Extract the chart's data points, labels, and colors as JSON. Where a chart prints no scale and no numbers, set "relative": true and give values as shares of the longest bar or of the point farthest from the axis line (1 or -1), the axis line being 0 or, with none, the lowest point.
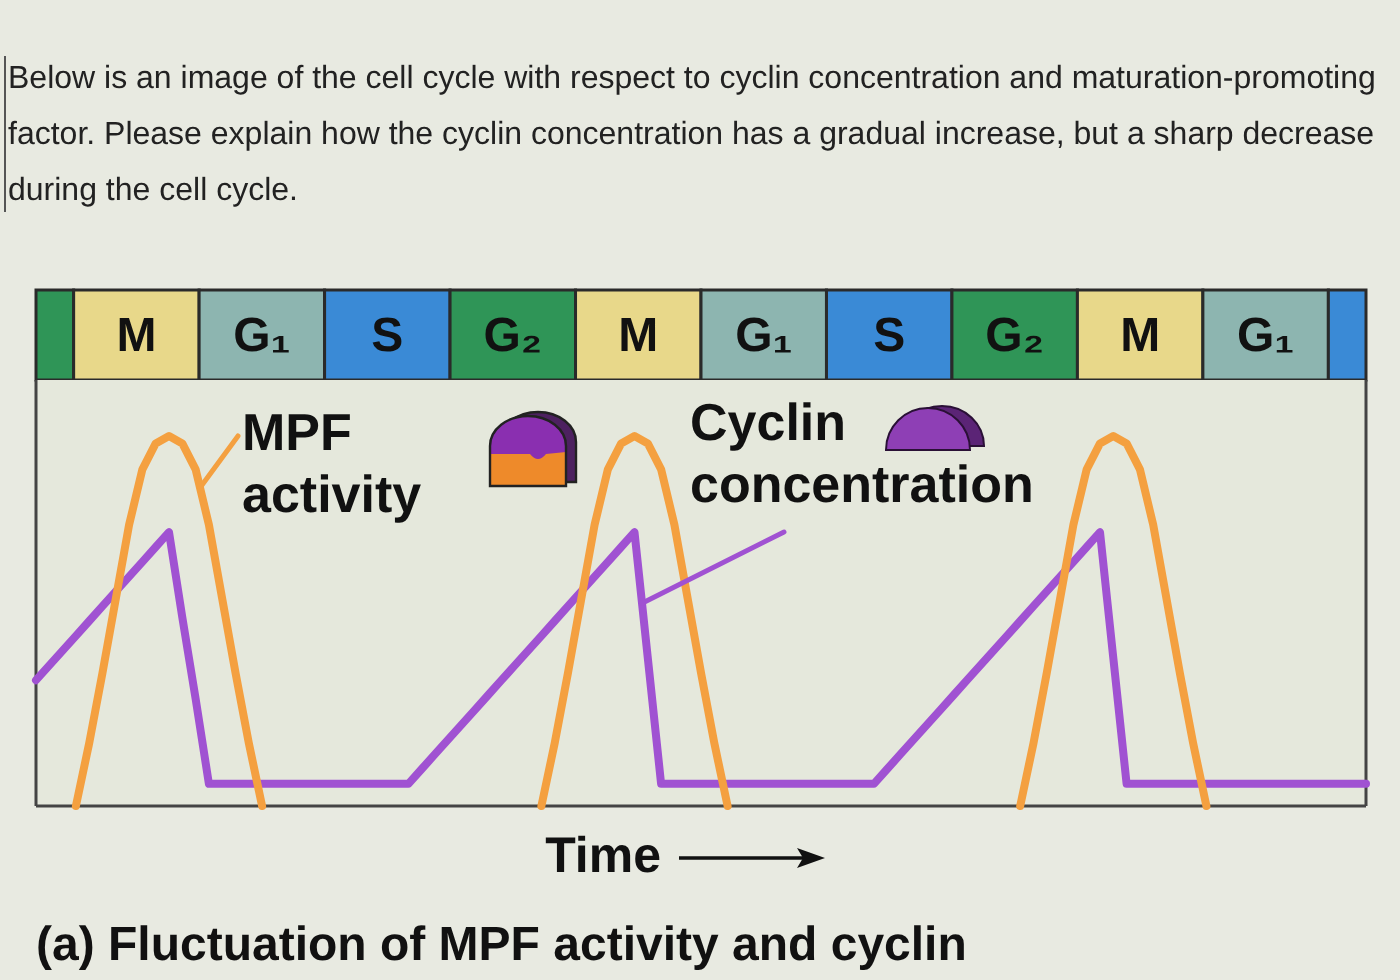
{
  "chart_data": [
    {
      "type": "other",
      "title": "Below is an image of the cell cycle with respect to cyclin concentration and maturation-promoting factor. Please explain how the cyclin concentration has a gradual increase, but a sharp decrease during the cell cycle.",
      "categories": [
        null,
        "M",
        "G₁",
        "S",
        "G₂",
        "M",
        "G₁",
        "S",
        "G₂",
        "M",
        "G₁",
        null
      ],
      "colors": [
        "#2f9557",
        "#e8d88a",
        "#8db5b0",
        "#3a8ad6",
        "#2f9557",
        "#e8d88a",
        "#8db5b0",
        "#3a8ad6",
        "#2f9557",
        "#e8d88a",
        "#8db5b0",
        "#3a8ad6"
      ]
    },
    {
      "type": "line",
      "xlabel": "Time",
      "annotations": [
        "(a) Fluctuation of MPF activity and cyclin"
      ],
      "relative": true,
      "legend": "top",
      "line_style": "solid",
      "categories": [
        null,
        null,
        null,
        null,
        null,
        null,
        null,
        null,
        null,
        null,
        null,
        null,
        null,
        null,
        null,
        null,
        null,
        null,
        null,
        null,
        null,
        null,
        null,
        null,
        null,
        null,
        null,
        null,
        null,
        null,
        null,
        null,
        null,
        null,
        null,
        null,
        null,
        null,
        null,
        null,
        null,
        null,
        null,
        null,
        null,
        null,
        null,
        null,
        null,
        null,
        null,
        null,
        null,
        null,
        null,
        null,
        null,
        null,
        null,
        null,
        null,
        null,
        null,
        null,
        null,
        null,
        null,
        null,
        null,
        null,
        null,
        null,
        null,
        null,
        null,
        null,
        null,
        null,
        null,
        null,
        null,
        null,
        null,
        null,
        null,
        null,
        null,
        null,
        null,
        null,
        null,
        null,
        null,
        null,
        null,
        null,
        null,
        null,
        null,
        null,
        null
      ],
      "series": [
        {
          "name": "Cyclin concentration",
          "color": "#a052d2",
          "values": [
            0.34,
            0.38,
            0.42,
            0.46,
            0.5,
            0.54,
            0.58,
            0.62,
            0.66,
            0.7,
            0.74,
            0.51,
            0.29,
            0.06,
            0.06,
            0.06,
            0.06,
            0.06,
            0.06,
            0.06,
            0.06,
            0.06,
            0.06,
            0.06,
            0.06,
            0.06,
            0.06,
            0.06,
            0.06,
            0.1,
            0.14,
            0.18,
            0.22,
            0.26,
            0.3,
            0.34,
            0.38,
            0.42,
            0.46,
            0.5,
            0.54,
            0.58,
            0.62,
            0.66,
            0.7,
            0.74,
            0.4,
            0.06,
            0.06,
            0.06,
            0.06,
            0.06,
            0.06,
            0.06,
            0.06,
            0.06,
            0.06,
            0.06,
            0.06,
            0.06,
            0.06,
            0.06,
            0.06,
            0.06,
            0.1,
            0.14,
            0.18,
            0.22,
            0.26,
            0.3,
            0.34,
            0.38,
            0.42,
            0.46,
            0.5,
            0.54,
            0.58,
            0.62,
            0.66,
            0.7,
            0.74,
            0.4,
            0.06,
            0.06,
            0.06,
            0.06,
            0.06,
            0.06,
            0.06,
            0.06,
            0.06,
            0.06,
            0.06,
            0.06,
            0.06,
            0.06,
            0.06,
            0.06,
            0.06,
            0.06,
            0.06
          ]
        },
        {
          "name": "MPF activity",
          "color": "#f4a040",
          "values": [
            null,
            null,
            null,
            0,
            0.17,
            0.36,
            0.56,
            0.76,
            0.91,
            0.98,
            1,
            0.98,
            0.91,
            0.76,
            0.56,
            0.36,
            0.17,
            0,
            null,
            null,
            null,
            null,
            null,
            null,
            null,
            null,
            null,
            null,
            null,
            null,
            null,
            null,
            null,
            null,
            null,
            null,
            null,
            null,
            0,
            0.17,
            0.36,
            0.56,
            0.76,
            0.91,
            0.98,
            1,
            0.98,
            0.91,
            0.76,
            0.56,
            0.36,
            0.17,
            0,
            null,
            null,
            null,
            null,
            null,
            null,
            null,
            null,
            null,
            null,
            null,
            null,
            null,
            null,
            null,
            null,
            null,
            null,
            null,
            null,
            null,
            0,
            0.17,
            0.36,
            0.56,
            0.76,
            0.91,
            0.98,
            1,
            0.98,
            0.91,
            0.76,
            0.56,
            0.36,
            0.17,
            0,
            null,
            null,
            null,
            null,
            null,
            null,
            null,
            null,
            null,
            null,
            null,
            null
          ]
        }
      ]
    }
  ]
}
